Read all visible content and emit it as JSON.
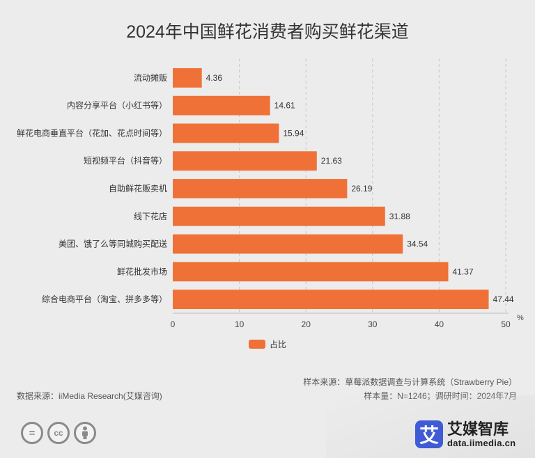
{
  "chart_data": {
    "type": "bar",
    "orientation": "horizontal",
    "title": "2024年中国鲜花消费者购买鲜花渠道",
    "categories": [
      "流动摊贩",
      "内容分享平台（小红书等）",
      "鲜花电商垂直平台（花加、花点时间等）",
      "短视频平台（抖音等）",
      "自助鲜花贩卖机",
      "线下花店",
      "美团、饿了么等同城购买配送",
      "鲜花批发市场",
      "综合电商平台（淘宝、拼多多等）"
    ],
    "series": [
      {
        "name": "占比",
        "values": [
          4.36,
          14.61,
          15.94,
          21.63,
          26.19,
          31.88,
          34.54,
          41.37,
          47.44
        ],
        "color": "#f07138"
      }
    ],
    "value_labels": [
      "4.36",
      "14.61",
      "15.94",
      "21.63",
      "26.19",
      "31.88",
      "34.54",
      "41.37",
      "47.44"
    ],
    "xlim": [
      0,
      50
    ],
    "xticks": [
      "0",
      "10",
      "20",
      "30",
      "40",
      "50"
    ],
    "x_unit": "%",
    "grid": "vertical dashed",
    "legend_position": "bottom"
  },
  "notes": {
    "sample_source": "样本来源：草莓派数据调查与计算系统（Strawberry Pie）",
    "data_source": "数据来源：iiMedia Research(艾媒咨询)",
    "sample_info": "样本量：N=1246；调研时间：2024年7月"
  },
  "license_icons": [
    "equals-icon",
    "cc-icon",
    "person-icon"
  ],
  "license_glyphs": {
    "equals": "=",
    "cc": "cc"
  },
  "brand": {
    "logo_char": "艾",
    "name": "艾媒智库",
    "url": "data.iimedia.cn"
  }
}
